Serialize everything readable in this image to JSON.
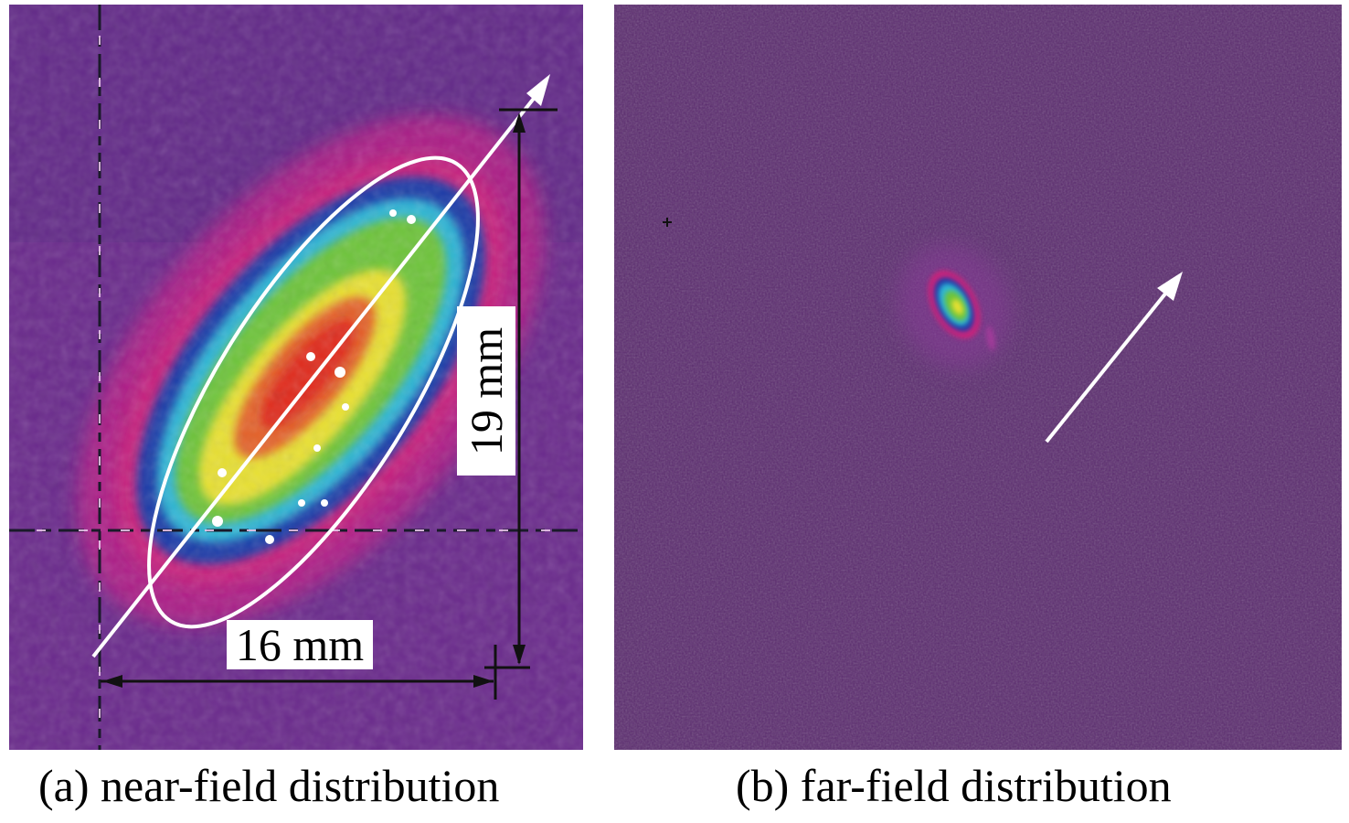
{
  "panels": {
    "near_field": {
      "caption": "(a) near-field distribution",
      "width_label": "16 mm",
      "height_label": "19 mm"
    },
    "far_field": {
      "caption": "(b) far-field distribution"
    }
  },
  "colors": {
    "background_purple": "#6a2a8c",
    "far_background": "#5a2a6e",
    "magenta": "#d0207a",
    "blue": "#1c3aa8",
    "cyan": "#2fb6d6",
    "green": "#6ec43a",
    "yellow": "#e8e030",
    "red": "#e02a1e",
    "white": "#ffffff"
  }
}
